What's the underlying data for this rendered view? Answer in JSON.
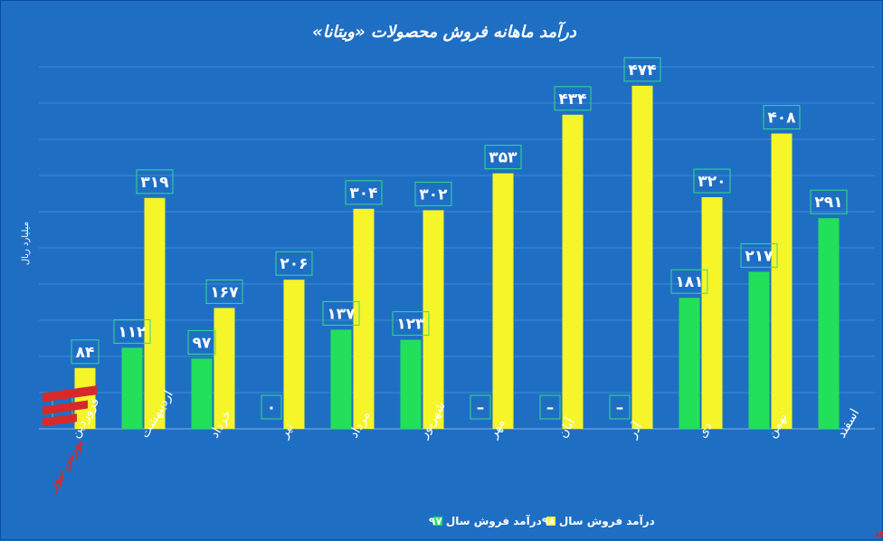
{
  "chart_data": {
    "type": "bar",
    "title": "درآمد ماهانه فروش محصولات «ویتانا»",
    "ylabel": "میلیارد ریال",
    "ylim": [
      0,
      500
    ],
    "grid": true,
    "legend_position": "bottom",
    "categories": [
      "فروردین",
      "اردیبهشت",
      "خرداد",
      "تیر",
      "مرداد",
      "شهریور",
      "مهر",
      "آبان",
      "آذر",
      "دی",
      "بهمن",
      "اسفند"
    ],
    "series": [
      {
        "name": "درآمد فروش سال ۹۷",
        "color": "#22e05a",
        "values": [
          null,
          112,
          97,
          0,
          137,
          123,
          null,
          null,
          null,
          181,
          217,
          291
        ],
        "labels": [
          "–",
          "۱۱۲",
          "۹۷",
          "۰",
          "۱۳۷",
          "۱۲۳",
          "–",
          "–",
          "–",
          "۱۸۱",
          "۲۱۷",
          "۲۹۱"
        ]
      },
      {
        "name": "درآمد فروش سال ۹۸",
        "color": "#f5f52a",
        "values": [
          84,
          319,
          167,
          206,
          304,
          302,
          353,
          434,
          474,
          320,
          408,
          null
        ],
        "labels": [
          "۸۴",
          "۳۱۹",
          "۱۶۷",
          "۲۰۶",
          "۳۰۴",
          "۳۰۲",
          "۳۵۳",
          "۴۳۴",
          "۴۷۴",
          "۳۲۰",
          "۴۰۸",
          ""
        ]
      }
    ]
  },
  "branding": {
    "logo_text": "بورس نیوز",
    "logo_color": "#d62a2a",
    "source_text": "بورس نیوز"
  }
}
